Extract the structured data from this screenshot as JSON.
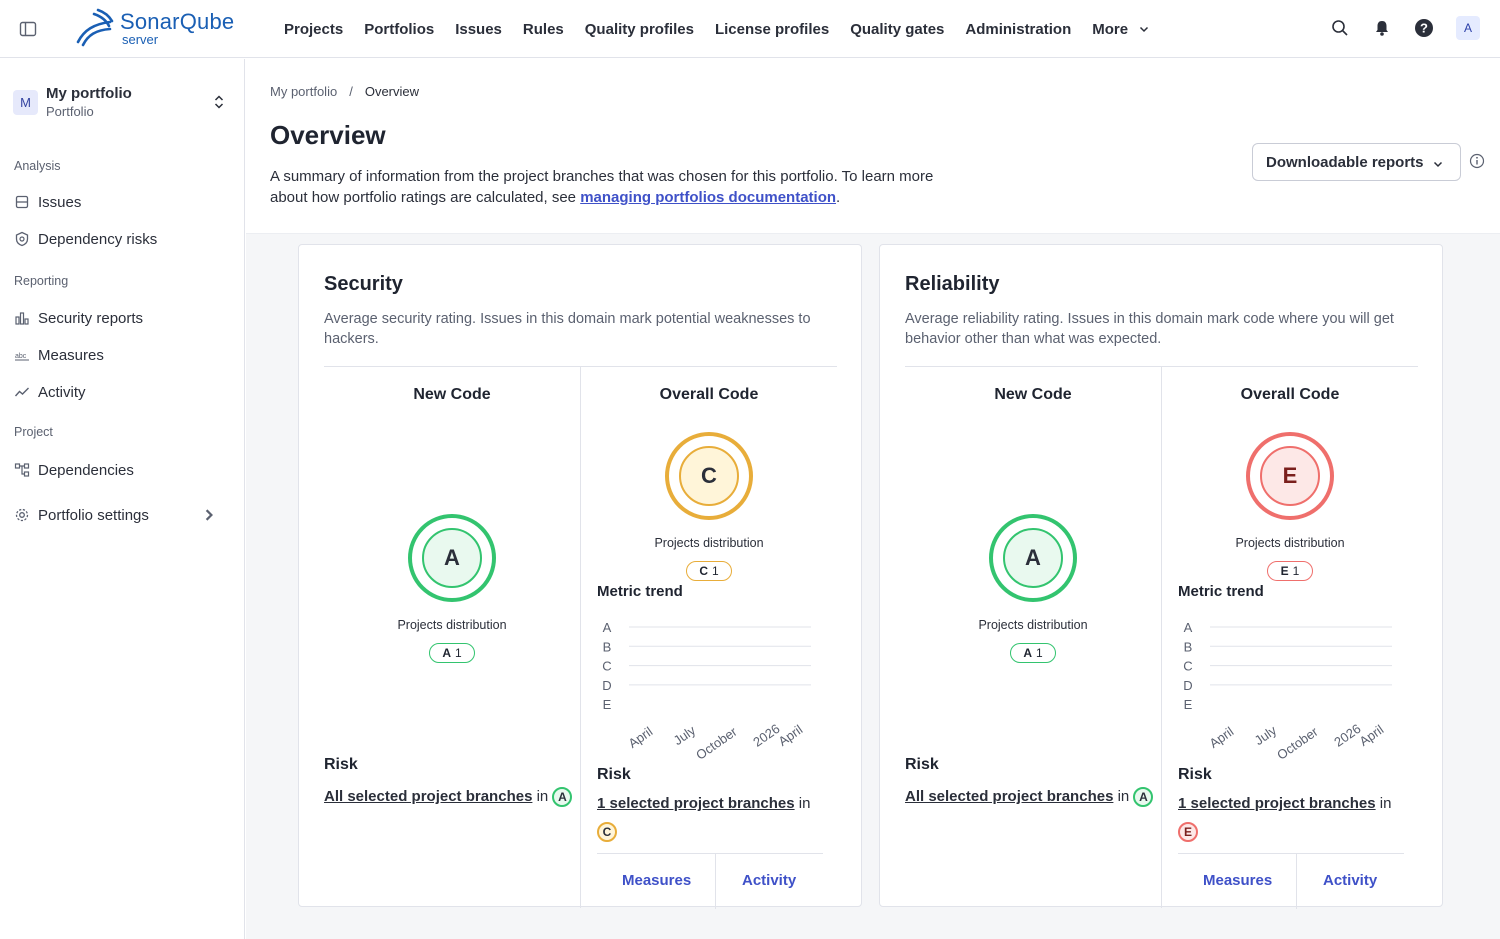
{
  "app": {
    "brand": "SonarQube",
    "brand_sub": "server",
    "nav": [
      "Projects",
      "Portfolios",
      "Issues",
      "Rules",
      "Quality profiles",
      "License profiles",
      "Quality gates",
      "Administration",
      "More"
    ],
    "user_initial": "A"
  },
  "sidebar": {
    "portfolio_initial": "M",
    "portfolio_name": "My portfolio",
    "portfolio_type": "Portfolio",
    "sections": {
      "analysis": "Analysis",
      "reporting": "Reporting",
      "project": "Project"
    },
    "items": {
      "issues": "Issues",
      "dependency_risks": "Dependency risks",
      "security_reports": "Security reports",
      "measures": "Measures",
      "activity": "Activity",
      "dependencies": "Dependencies",
      "portfolio_settings": "Portfolio settings"
    }
  },
  "header": {
    "breadcrumb": [
      "My portfolio",
      "Overview"
    ],
    "breadcrumb_sep": "/",
    "title": "Overview",
    "desc_before": "A summary of information from the project branches that was chosen for this portfolio. To learn more about how portfolio ratings are calculated, see ",
    "desc_link": "managing portfolios documentation",
    "desc_after": ".",
    "download_button": "Downloadable reports"
  },
  "cards": {
    "security": {
      "title": "Security",
      "desc": "Average security rating. Issues in this domain mark potential weaknesses to hackers.",
      "new_code_label": "New Code",
      "overall_code_label": "Overall Code",
      "new_rating": "A",
      "overall_rating": "C",
      "dist_label": "Projects distribution",
      "new_dist": {
        "grade": "A",
        "count": "1"
      },
      "overall_dist": {
        "grade": "C",
        "count": "1"
      },
      "metric_trend_label": "Metric trend",
      "risk_label": "Risk",
      "new_risk_link": "All selected project branches",
      "overall_risk_link": "1 selected project branches",
      "risk_in": "in",
      "measures_link": "Measures",
      "activity_link": "Activity"
    },
    "reliability": {
      "title": "Reliability",
      "desc": "Average reliability rating. Issues in this domain mark code where you will get behavior other than what was expected.",
      "new_code_label": "New Code",
      "overall_code_label": "Overall Code",
      "new_rating": "A",
      "overall_rating": "E",
      "dist_label": "Projects distribution",
      "new_dist": {
        "grade": "A",
        "count": "1"
      },
      "overall_dist": {
        "grade": "E",
        "count": "1"
      },
      "metric_trend_label": "Metric trend",
      "risk_label": "Risk",
      "new_risk_link": "All selected project branches",
      "overall_risk_link": "1 selected project branches",
      "risk_in": "in",
      "measures_link": "Measures",
      "activity_link": "Activity"
    }
  },
  "chart_data": [
    {
      "type": "line",
      "series": [],
      "y_categories": [
        "A",
        "B",
        "C",
        "D",
        "E"
      ],
      "x_ticks": [
        "April",
        "July",
        "October",
        "2026",
        "April"
      ]
    },
    {
      "type": "line",
      "series": [],
      "y_categories": [
        "A",
        "B",
        "C",
        "D",
        "E"
      ],
      "x_ticks": [
        "April",
        "July",
        "October",
        "2026",
        "April"
      ]
    }
  ],
  "colors": {
    "rating_a": "#33c46f",
    "rating_c": "#e8ad3a",
    "rating_e": "#ef6f6c",
    "link": "#3f51c8"
  }
}
